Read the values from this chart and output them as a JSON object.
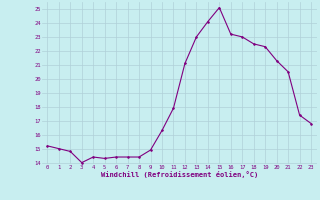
{
  "x": [
    0,
    1,
    2,
    3,
    4,
    5,
    6,
    7,
    8,
    9,
    10,
    11,
    12,
    13,
    14,
    15,
    16,
    17,
    18,
    19,
    20,
    21,
    22,
    23
  ],
  "y": [
    15.2,
    15.0,
    14.8,
    14.0,
    14.4,
    14.3,
    14.4,
    14.4,
    14.4,
    14.9,
    16.3,
    17.9,
    21.1,
    23.0,
    24.1,
    25.1,
    23.2,
    23.0,
    22.5,
    22.3,
    21.3,
    20.5,
    17.4,
    16.8
  ],
  "line_color": "#800080",
  "marker": ".",
  "marker_color": "#800080",
  "bg_color": "#c8eef0",
  "grid_color": "#b0d0d8",
  "xlabel": "Windchill (Refroidissement éolien,°C)",
  "xlabel_color": "#800080",
  "tick_color": "#800080",
  "ylim_min": 14,
  "ylim_max": 25.5,
  "yticks": [
    14,
    15,
    16,
    17,
    18,
    19,
    20,
    21,
    22,
    23,
    24,
    25
  ],
  "xticks": [
    0,
    1,
    2,
    3,
    4,
    5,
    6,
    7,
    8,
    9,
    10,
    11,
    12,
    13,
    14,
    15,
    16,
    17,
    18,
    19,
    20,
    21,
    22,
    23
  ],
  "xlim_min": -0.5,
  "xlim_max": 23.5
}
